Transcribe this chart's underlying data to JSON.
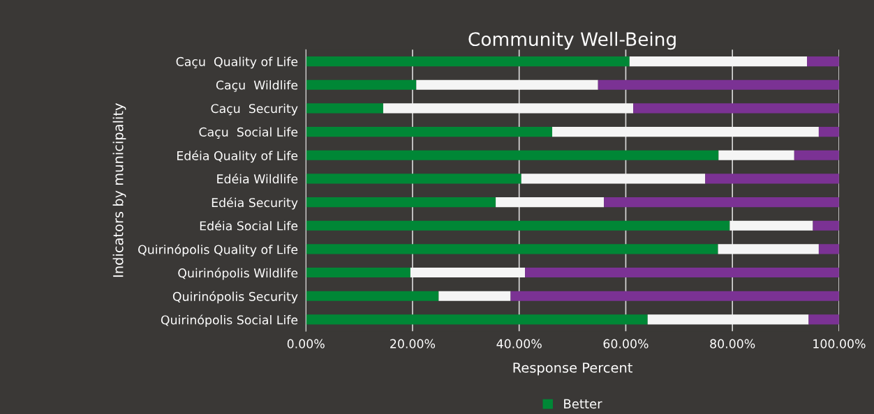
{
  "chart_data": {
    "type": "bar",
    "orientation": "horizontal",
    "stacked": true,
    "title": "Community Well-Being",
    "xlabel": "Response Percent",
    "ylabel": "Indicators by municipality",
    "categories": [
      "Caçu  Quality of Life",
      "Caçu  Wildlife",
      "Caçu  Security",
      "Caçu  Social Life",
      "Edéia Quality of Life",
      "Edéia Wildlife",
      "Edéia Security",
      "Edéia Social Life",
      "Quirinópolis Quality of Life",
      "Quirinópolis Wildlife",
      "Quirinópolis Security",
      "Quirinópolis Social Life"
    ],
    "series": [
      {
        "name": "Better",
        "color": "#008736",
        "values": [
          60.7,
          20.7,
          14.5,
          46.2,
          77.4,
          40.4,
          35.6,
          79.5,
          77.3,
          19.6,
          24.9,
          64.1
        ]
      },
      {
        "color": "#f5f5f5",
        "values": [
          33.3,
          34.1,
          46.9,
          50.0,
          14.2,
          34.5,
          20.3,
          15.6,
          18.9,
          21.5,
          13.5,
          30.2
        ]
      },
      {
        "color": "#7b3294",
        "values": [
          6.0,
          45.2,
          38.6,
          3.8,
          8.4,
          25.1,
          44.1,
          4.9,
          3.8,
          58.9,
          61.6,
          5.7
        ]
      }
    ],
    "xlim": [
      0,
      100
    ],
    "xticks": [
      {
        "value": 0,
        "label": "0.00%"
      },
      {
        "value": 20,
        "label": "20.00%"
      },
      {
        "value": 40,
        "label": "40.00%"
      },
      {
        "value": 60,
        "label": "60.00%"
      },
      {
        "value": 80,
        "label": "80.00%"
      },
      {
        "value": 100,
        "label": "100.00%"
      }
    ],
    "grid": "x",
    "legend": "bottom"
  }
}
